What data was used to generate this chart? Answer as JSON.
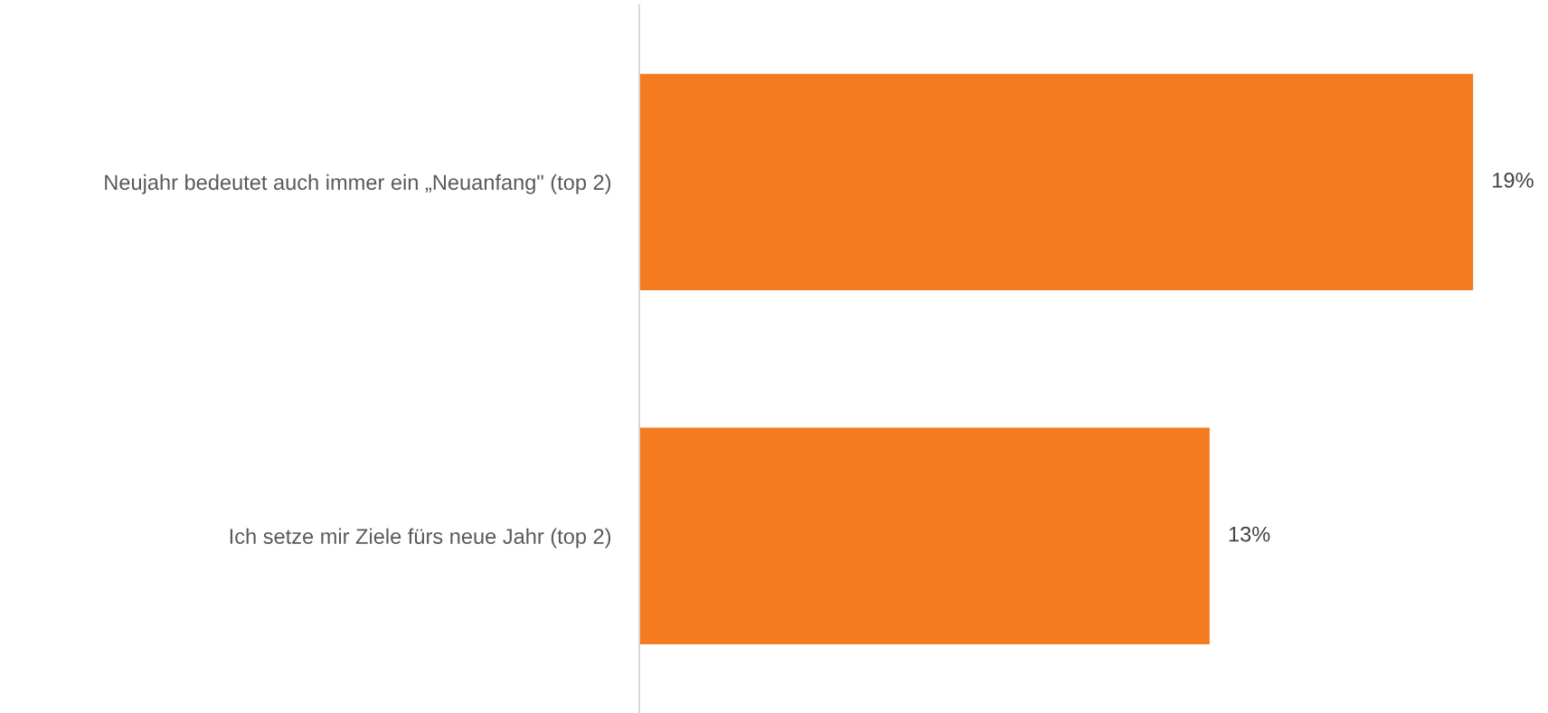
{
  "chart_data": {
    "type": "bar",
    "orientation": "horizontal",
    "categories": [
      "Neujahr bedeutet auch immer ein „Neuanfang\" (top 2)",
      "Ich setze mir Ziele fürs neue Jahr (top 2)"
    ],
    "values": [
      19,
      13
    ],
    "color": "#f47b20",
    "value_labels": [
      "19%",
      "13%"
    ],
    "tick_labels": "y",
    "grid": false,
    "legend": false
  }
}
